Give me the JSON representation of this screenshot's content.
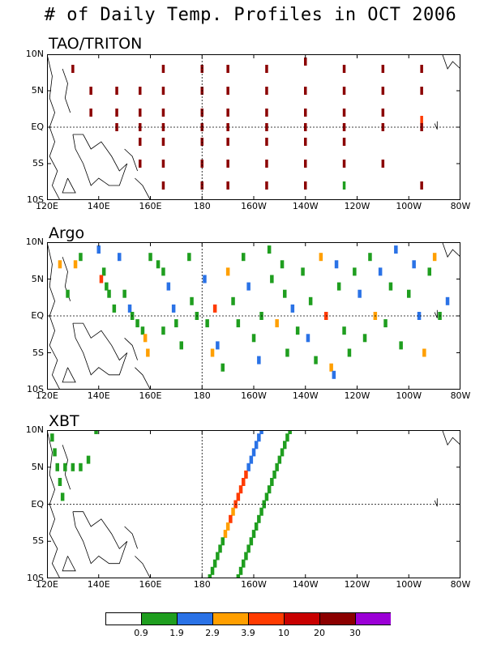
{
  "title": "# of Daily Temp. Profiles in OCT 2006",
  "colors": {
    "white": "#ffffff",
    "green": "#1f9e1f",
    "blue": "#2a72e6",
    "orange": "#ff9f00",
    "red": "#ff3b00",
    "darkred": "#c80000",
    "maroon": "#8b0000",
    "purple": "#9b00d6"
  },
  "colorbar": {
    "colors": [
      "#ffffff",
      "#1f9e1f",
      "#2a72e6",
      "#ff9f00",
      "#ff3b00",
      "#c80000",
      "#8b0000",
      "#9b00d6"
    ],
    "labels": [
      "0.9",
      "1.9",
      "2.9",
      "3.9",
      "10",
      "20",
      "30"
    ]
  },
  "axes": {
    "x_labels": [
      "120E",
      "140E",
      "160E",
      "180",
      "160W",
      "140W",
      "120W",
      "100W",
      "80W"
    ],
    "y_labels": [
      "10N",
      "5N",
      "EQ",
      "5S",
      "10S"
    ]
  },
  "panels": [
    {
      "id": "tao",
      "title": "TAO/TRITON"
    },
    {
      "id": "argo",
      "title": "Argo"
    },
    {
      "id": "xbt",
      "title": "XBT"
    }
  ],
  "chart_data": [
    {
      "type": "heatmap",
      "name": "TAO/TRITON",
      "xlim": [
        120,
        280
      ],
      "ylim": [
        -10,
        10
      ],
      "cells": [
        {
          "lon": 130,
          "lat": 8,
          "c": "maroon"
        },
        {
          "lon": 137,
          "lat": 5,
          "c": "maroon"
        },
        {
          "lon": 137,
          "lat": 2,
          "c": "maroon"
        },
        {
          "lon": 147,
          "lat": 5,
          "c": "maroon"
        },
        {
          "lon": 147,
          "lat": 2,
          "c": "maroon"
        },
        {
          "lon": 147,
          "lat": 0,
          "c": "maroon"
        },
        {
          "lon": 156,
          "lat": 5,
          "c": "maroon"
        },
        {
          "lon": 156,
          "lat": 2,
          "c": "maroon"
        },
        {
          "lon": 156,
          "lat": 0,
          "c": "maroon"
        },
        {
          "lon": 156,
          "lat": -2,
          "c": "maroon"
        },
        {
          "lon": 156,
          "lat": -5,
          "c": "maroon"
        },
        {
          "lon": 165,
          "lat": 8,
          "c": "maroon"
        },
        {
          "lon": 165,
          "lat": 5,
          "c": "maroon"
        },
        {
          "lon": 165,
          "lat": 2,
          "c": "maroon"
        },
        {
          "lon": 165,
          "lat": 0,
          "c": "maroon"
        },
        {
          "lon": 165,
          "lat": -2,
          "c": "maroon"
        },
        {
          "lon": 165,
          "lat": -5,
          "c": "maroon"
        },
        {
          "lon": 165,
          "lat": -8,
          "c": "maroon"
        },
        {
          "lon": 180,
          "lat": 8,
          "c": "maroon"
        },
        {
          "lon": 180,
          "lat": 5,
          "c": "maroon"
        },
        {
          "lon": 180,
          "lat": 2,
          "c": "maroon"
        },
        {
          "lon": 180,
          "lat": 0,
          "c": "maroon"
        },
        {
          "lon": 180,
          "lat": -2,
          "c": "maroon"
        },
        {
          "lon": 180,
          "lat": -5,
          "c": "maroon"
        },
        {
          "lon": 180,
          "lat": -8,
          "c": "maroon"
        },
        {
          "lon": 190,
          "lat": 8,
          "c": "maroon"
        },
        {
          "lon": 190,
          "lat": 5,
          "c": "maroon"
        },
        {
          "lon": 190,
          "lat": 2,
          "c": "maroon"
        },
        {
          "lon": 190,
          "lat": 0,
          "c": "maroon"
        },
        {
          "lon": 190,
          "lat": -2,
          "c": "maroon"
        },
        {
          "lon": 190,
          "lat": -5,
          "c": "maroon"
        },
        {
          "lon": 190,
          "lat": -8,
          "c": "maroon"
        },
        {
          "lon": 205,
          "lat": 8,
          "c": "maroon"
        },
        {
          "lon": 205,
          "lat": 5,
          "c": "maroon"
        },
        {
          "lon": 205,
          "lat": 2,
          "c": "maroon"
        },
        {
          "lon": 205,
          "lat": 0,
          "c": "maroon"
        },
        {
          "lon": 205,
          "lat": -2,
          "c": "maroon"
        },
        {
          "lon": 205,
          "lat": -5,
          "c": "maroon"
        },
        {
          "lon": 205,
          "lat": -8,
          "c": "maroon"
        },
        {
          "lon": 220,
          "lat": 9,
          "c": "maroon"
        },
        {
          "lon": 220,
          "lat": 5,
          "c": "maroon"
        },
        {
          "lon": 220,
          "lat": 2,
          "c": "maroon"
        },
        {
          "lon": 220,
          "lat": 0,
          "c": "maroon"
        },
        {
          "lon": 220,
          "lat": -2,
          "c": "maroon"
        },
        {
          "lon": 220,
          "lat": -5,
          "c": "maroon"
        },
        {
          "lon": 220,
          "lat": -8,
          "c": "maroon"
        },
        {
          "lon": 235,
          "lat": 8,
          "c": "maroon"
        },
        {
          "lon": 235,
          "lat": 5,
          "c": "maroon"
        },
        {
          "lon": 235,
          "lat": 2,
          "c": "maroon"
        },
        {
          "lon": 235,
          "lat": 0,
          "c": "maroon"
        },
        {
          "lon": 235,
          "lat": -2,
          "c": "maroon"
        },
        {
          "lon": 235,
          "lat": -5,
          "c": "maroon"
        },
        {
          "lon": 235,
          "lat": -8,
          "c": "green"
        },
        {
          "lon": 250,
          "lat": 8,
          "c": "maroon"
        },
        {
          "lon": 250,
          "lat": 5,
          "c": "maroon"
        },
        {
          "lon": 250,
          "lat": 2,
          "c": "maroon"
        },
        {
          "lon": 250,
          "lat": 0,
          "c": "maroon"
        },
        {
          "lon": 250,
          "lat": -5,
          "c": "maroon"
        },
        {
          "lon": 265,
          "lat": 8,
          "c": "maroon"
        },
        {
          "lon": 265,
          "lat": 5,
          "c": "maroon"
        },
        {
          "lon": 265,
          "lat": 1,
          "c": "red"
        },
        {
          "lon": 265,
          "lat": 0,
          "c": "maroon"
        },
        {
          "lon": 265,
          "lat": -8,
          "c": "maroon"
        }
      ]
    },
    {
      "type": "heatmap",
      "name": "Argo",
      "xlim": [
        120,
        280
      ],
      "ylim": [
        -10,
        10
      ],
      "cells": [
        {
          "lon": 125,
          "lat": 7,
          "c": "orange"
        },
        {
          "lon": 131,
          "lat": 7,
          "c": "orange"
        },
        {
          "lon": 128,
          "lat": 3,
          "c": "green"
        },
        {
          "lon": 133,
          "lat": 8,
          "c": "green"
        },
        {
          "lon": 140,
          "lat": 9,
          "c": "blue"
        },
        {
          "lon": 142,
          "lat": 6,
          "c": "green"
        },
        {
          "lon": 141,
          "lat": 5,
          "c": "red"
        },
        {
          "lon": 143,
          "lat": 4,
          "c": "green"
        },
        {
          "lon": 144,
          "lat": 3,
          "c": "green"
        },
        {
          "lon": 146,
          "lat": 1,
          "c": "green"
        },
        {
          "lon": 148,
          "lat": 8,
          "c": "blue"
        },
        {
          "lon": 150,
          "lat": 3,
          "c": "green"
        },
        {
          "lon": 152,
          "lat": 1,
          "c": "blue"
        },
        {
          "lon": 153,
          "lat": 0,
          "c": "green"
        },
        {
          "lon": 155,
          "lat": -1,
          "c": "green"
        },
        {
          "lon": 157,
          "lat": -2,
          "c": "green"
        },
        {
          "lon": 158,
          "lat": -3,
          "c": "orange"
        },
        {
          "lon": 159,
          "lat": -5,
          "c": "orange"
        },
        {
          "lon": 160,
          "lat": 8,
          "c": "green"
        },
        {
          "lon": 163,
          "lat": 7,
          "c": "green"
        },
        {
          "lon": 165,
          "lat": 6,
          "c": "green"
        },
        {
          "lon": 167,
          "lat": 4,
          "c": "blue"
        },
        {
          "lon": 169,
          "lat": 1,
          "c": "blue"
        },
        {
          "lon": 170,
          "lat": -1,
          "c": "green"
        },
        {
          "lon": 172,
          "lat": -4,
          "c": "green"
        },
        {
          "lon": 165,
          "lat": -2,
          "c": "green"
        },
        {
          "lon": 175,
          "lat": 8,
          "c": "green"
        },
        {
          "lon": 176,
          "lat": 2,
          "c": "green"
        },
        {
          "lon": 178,
          "lat": 0,
          "c": "green"
        },
        {
          "lon": 181,
          "lat": 5,
          "c": "blue"
        },
        {
          "lon": 182,
          "lat": -1,
          "c": "green"
        },
        {
          "lon": 184,
          "lat": -5,
          "c": "orange"
        },
        {
          "lon": 185,
          "lat": 1,
          "c": "red"
        },
        {
          "lon": 186,
          "lat": -4,
          "c": "blue"
        },
        {
          "lon": 188,
          "lat": -7,
          "c": "green"
        },
        {
          "lon": 190,
          "lat": 6,
          "c": "orange"
        },
        {
          "lon": 192,
          "lat": 2,
          "c": "green"
        },
        {
          "lon": 194,
          "lat": -1,
          "c": "green"
        },
        {
          "lon": 196,
          "lat": 8,
          "c": "green"
        },
        {
          "lon": 198,
          "lat": 4,
          "c": "blue"
        },
        {
          "lon": 200,
          "lat": -3,
          "c": "green"
        },
        {
          "lon": 202,
          "lat": -6,
          "c": "blue"
        },
        {
          "lon": 203,
          "lat": 0,
          "c": "green"
        },
        {
          "lon": 206,
          "lat": 9,
          "c": "green"
        },
        {
          "lon": 207,
          "lat": 5,
          "c": "green"
        },
        {
          "lon": 209,
          "lat": -1,
          "c": "orange"
        },
        {
          "lon": 211,
          "lat": 7,
          "c": "green"
        },
        {
          "lon": 212,
          "lat": 3,
          "c": "green"
        },
        {
          "lon": 213,
          "lat": -5,
          "c": "green"
        },
        {
          "lon": 215,
          "lat": 1,
          "c": "blue"
        },
        {
          "lon": 217,
          "lat": -2,
          "c": "green"
        },
        {
          "lon": 219,
          "lat": 6,
          "c": "green"
        },
        {
          "lon": 221,
          "lat": -3,
          "c": "blue"
        },
        {
          "lon": 222,
          "lat": 2,
          "c": "green"
        },
        {
          "lon": 224,
          "lat": -6,
          "c": "green"
        },
        {
          "lon": 226,
          "lat": 8,
          "c": "orange"
        },
        {
          "lon": 228,
          "lat": 0,
          "c": "red"
        },
        {
          "lon": 230,
          "lat": -7,
          "c": "orange"
        },
        {
          "lon": 231,
          "lat": -8,
          "c": "blue"
        },
        {
          "lon": 232,
          "lat": 7,
          "c": "blue"
        },
        {
          "lon": 233,
          "lat": 4,
          "c": "green"
        },
        {
          "lon": 235,
          "lat": -2,
          "c": "green"
        },
        {
          "lon": 237,
          "lat": -5,
          "c": "green"
        },
        {
          "lon": 239,
          "lat": 6,
          "c": "green"
        },
        {
          "lon": 241,
          "lat": 3,
          "c": "blue"
        },
        {
          "lon": 243,
          "lat": -3,
          "c": "green"
        },
        {
          "lon": 245,
          "lat": 8,
          "c": "green"
        },
        {
          "lon": 247,
          "lat": 0,
          "c": "orange"
        },
        {
          "lon": 249,
          "lat": 6,
          "c": "blue"
        },
        {
          "lon": 251,
          "lat": -1,
          "c": "green"
        },
        {
          "lon": 253,
          "lat": 4,
          "c": "green"
        },
        {
          "lon": 255,
          "lat": 9,
          "c": "blue"
        },
        {
          "lon": 257,
          "lat": -4,
          "c": "green"
        },
        {
          "lon": 260,
          "lat": 3,
          "c": "green"
        },
        {
          "lon": 262,
          "lat": 7,
          "c": "blue"
        },
        {
          "lon": 264,
          "lat": 0,
          "c": "blue"
        },
        {
          "lon": 266,
          "lat": -5,
          "c": "orange"
        },
        {
          "lon": 268,
          "lat": 6,
          "c": "green"
        },
        {
          "lon": 270,
          "lat": 8,
          "c": "orange"
        },
        {
          "lon": 272,
          "lat": 0,
          "c": "green"
        },
        {
          "lon": 275,
          "lat": 2,
          "c": "blue"
        }
      ]
    },
    {
      "type": "heatmap",
      "name": "XBT",
      "xlim": [
        120,
        280
      ],
      "ylim": [
        -10,
        10
      ],
      "cells": [
        {
          "lon": 122,
          "lat": 9,
          "c": "green"
        },
        {
          "lon": 123,
          "lat": 7,
          "c": "green"
        },
        {
          "lon": 124,
          "lat": 5,
          "c": "green"
        },
        {
          "lon": 125,
          "lat": 3,
          "c": "green"
        },
        {
          "lon": 126,
          "lat": 1,
          "c": "green"
        },
        {
          "lon": 127,
          "lat": 5,
          "c": "green"
        },
        {
          "lon": 130,
          "lat": 5,
          "c": "green"
        },
        {
          "lon": 133,
          "lat": 5,
          "c": "green"
        },
        {
          "lon": 136,
          "lat": 6,
          "c": "green"
        },
        {
          "lon": 139,
          "lat": 10,
          "c": "green"
        },
        {
          "lon": 203,
          "lat": 10,
          "c": "blue"
        },
        {
          "lon": 202,
          "lat": 9,
          "c": "blue"
        },
        {
          "lon": 201,
          "lat": 8,
          "c": "blue"
        },
        {
          "lon": 200,
          "lat": 7,
          "c": "blue"
        },
        {
          "lon": 199,
          "lat": 6,
          "c": "blue"
        },
        {
          "lon": 198,
          "lat": 5,
          "c": "blue"
        },
        {
          "lon": 197,
          "lat": 4,
          "c": "red"
        },
        {
          "lon": 196,
          "lat": 3,
          "c": "red"
        },
        {
          "lon": 195,
          "lat": 2,
          "c": "red"
        },
        {
          "lon": 194,
          "lat": 1,
          "c": "red"
        },
        {
          "lon": 193,
          "lat": 0,
          "c": "red"
        },
        {
          "lon": 192,
          "lat": -1,
          "c": "orange"
        },
        {
          "lon": 191,
          "lat": -2,
          "c": "red"
        },
        {
          "lon": 190,
          "lat": -3,
          "c": "orange"
        },
        {
          "lon": 189,
          "lat": -4,
          "c": "orange"
        },
        {
          "lon": 188,
          "lat": -5,
          "c": "green"
        },
        {
          "lon": 187,
          "lat": -6,
          "c": "green"
        },
        {
          "lon": 186,
          "lat": -7,
          "c": "green"
        },
        {
          "lon": 185,
          "lat": -8,
          "c": "green"
        },
        {
          "lon": 184,
          "lat": -9,
          "c": "green"
        },
        {
          "lon": 183,
          "lat": -10,
          "c": "green"
        },
        {
          "lon": 214,
          "lat": 10,
          "c": "green"
        },
        {
          "lon": 213,
          "lat": 9,
          "c": "green"
        },
        {
          "lon": 212,
          "lat": 8,
          "c": "green"
        },
        {
          "lon": 211,
          "lat": 7,
          "c": "green"
        },
        {
          "lon": 210,
          "lat": 6,
          "c": "green"
        },
        {
          "lon": 209,
          "lat": 5,
          "c": "green"
        },
        {
          "lon": 208,
          "lat": 4,
          "c": "green"
        },
        {
          "lon": 207,
          "lat": 3,
          "c": "green"
        },
        {
          "lon": 206,
          "lat": 2,
          "c": "green"
        },
        {
          "lon": 205,
          "lat": 1,
          "c": "green"
        },
        {
          "lon": 204,
          "lat": 0,
          "c": "green"
        },
        {
          "lon": 203,
          "lat": -1,
          "c": "green"
        },
        {
          "lon": 202,
          "lat": -2,
          "c": "green"
        },
        {
          "lon": 201,
          "lat": -3,
          "c": "green"
        },
        {
          "lon": 200,
          "lat": -4,
          "c": "green"
        },
        {
          "lon": 199,
          "lat": -5,
          "c": "green"
        },
        {
          "lon": 198,
          "lat": -6,
          "c": "green"
        },
        {
          "lon": 197,
          "lat": -7,
          "c": "green"
        },
        {
          "lon": 196,
          "lat": -8,
          "c": "green"
        },
        {
          "lon": 195,
          "lat": -9,
          "c": "green"
        },
        {
          "lon": 194,
          "lat": -10,
          "c": "green"
        }
      ]
    }
  ]
}
